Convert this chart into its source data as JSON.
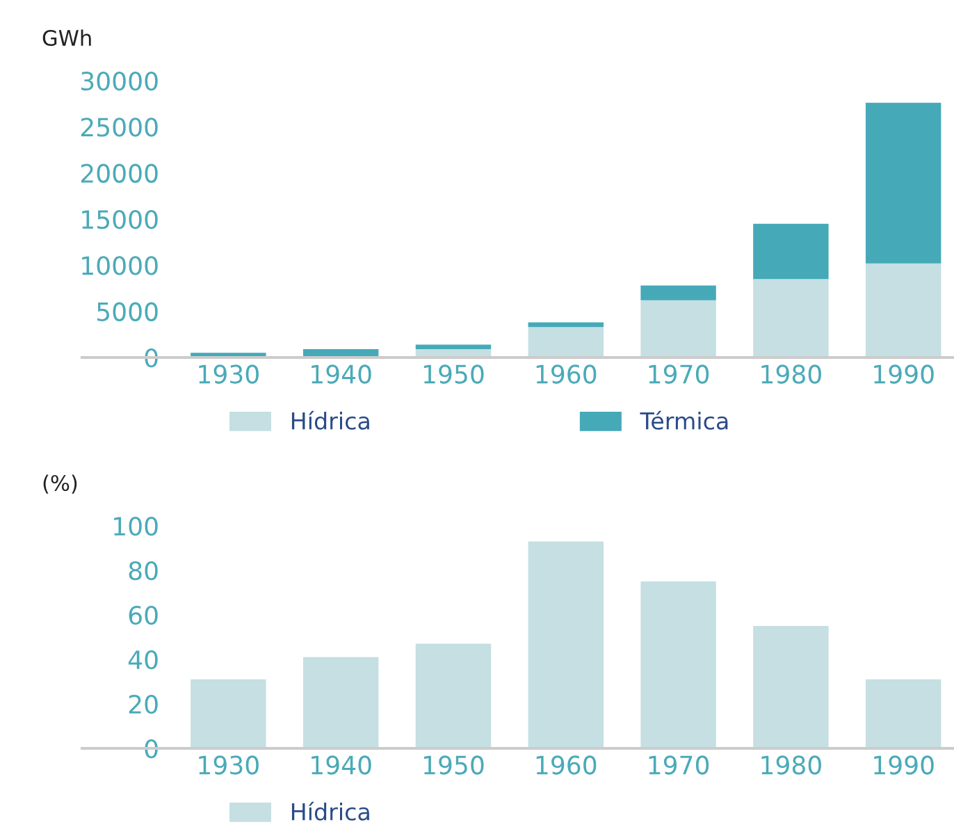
{
  "chart_data": [
    {
      "type": "bar",
      "stacked": true,
      "ylabel": "GWh",
      "categories": [
        "1930",
        "1940",
        "1950",
        "1960",
        "1970",
        "1980",
        "1990"
      ],
      "series": [
        {
          "name": "Hídrica",
          "color": "#c5dfe2",
          "values": [
            null,
            null,
            900,
            3300,
            6200,
            8500,
            10200
          ]
        },
        {
          "name": "Térmica",
          "color": "#45a9b8",
          "values": [
            500,
            900,
            500,
            500,
            1600,
            6000,
            17400
          ]
        }
      ],
      "ylim": [
        0,
        30000
      ],
      "yticks": [
        0,
        5000,
        10000,
        15000,
        20000,
        25000,
        30000
      ],
      "legend": "bottom"
    },
    {
      "type": "bar",
      "ylabel": "(%)",
      "categories": [
        "1930",
        "1940",
        "1950",
        "1960",
        "1970",
        "1980",
        "1990"
      ],
      "series": [
        {
          "name": "Hídrica",
          "color": "#c5dfe2",
          "values": [
            31,
            41,
            47,
            93,
            75,
            55,
            31
          ]
        }
      ],
      "ylim": [
        0,
        100
      ],
      "yticks": [
        0,
        20,
        40,
        60,
        80,
        100
      ],
      "legend": "bottom"
    }
  ]
}
